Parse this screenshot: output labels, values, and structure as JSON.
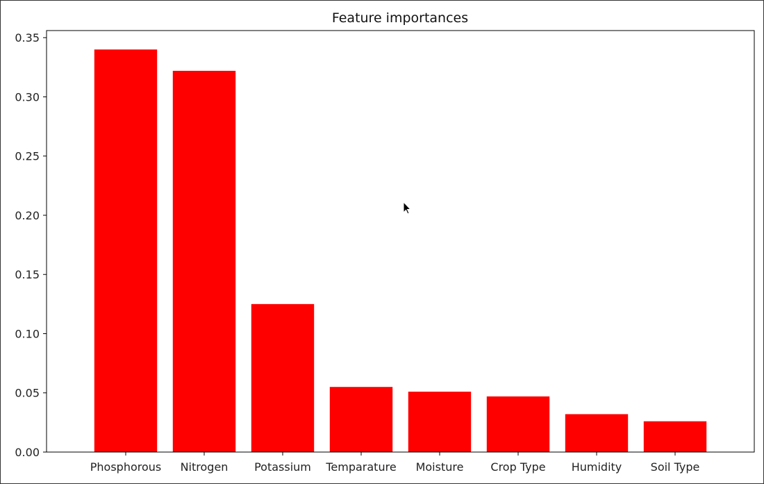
{
  "chart_data": {
    "type": "bar",
    "title": "Feature importances",
    "xlabel": "",
    "ylabel": "",
    "categories": [
      "Phosphorous",
      "Nitrogen",
      "Potassium",
      "Temparature",
      "Moisture",
      "Crop Type",
      "Humidity",
      "Soil Type"
    ],
    "values": [
      0.34,
      0.322,
      0.125,
      0.055,
      0.051,
      0.047,
      0.032,
      0.026
    ],
    "ylim": [
      0,
      0.356
    ],
    "yticks": [
      "0.00",
      "0.05",
      "0.10",
      "0.15",
      "0.20",
      "0.25",
      "0.30",
      "0.35"
    ],
    "ytick_values": [
      0,
      0.05,
      0.1,
      0.15,
      0.2,
      0.25,
      0.3,
      0.35
    ],
    "bar_color": "#ff0000",
    "grid": false,
    "legend": "none"
  },
  "cursor": {
    "icon": "mouse-pointer-icon"
  }
}
